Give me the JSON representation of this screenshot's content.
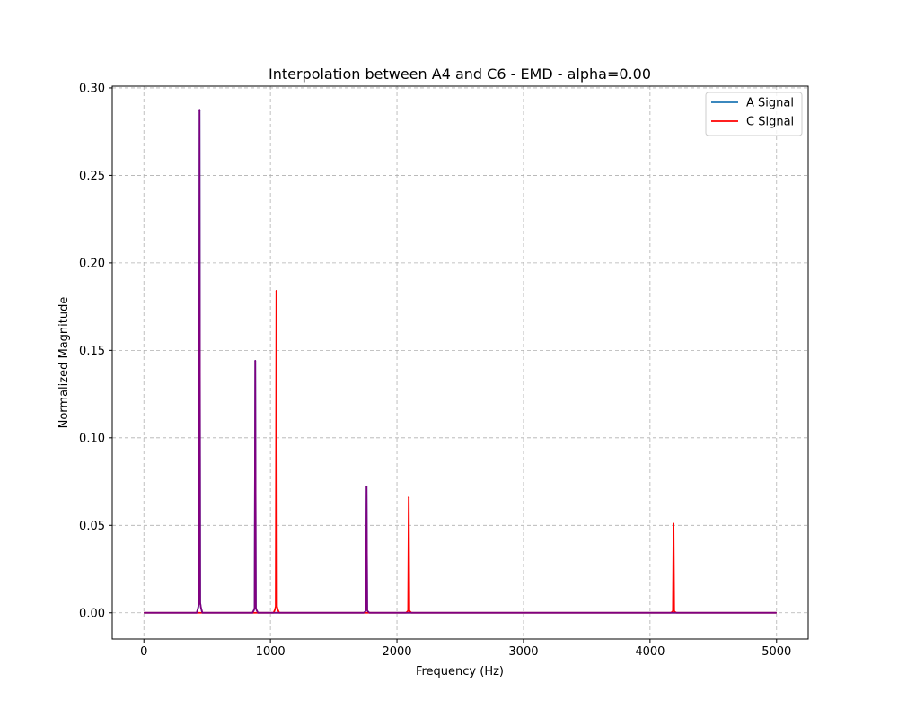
{
  "chart_data": {
    "type": "line",
    "title": "Interpolation between A4 and C6 - EMD - alpha=0.00",
    "xlabel": "Frequency (Hz)",
    "ylabel": "Normalized Magnitude",
    "xlim": [
      -250,
      5250
    ],
    "ylim": [
      -0.015,
      0.301
    ],
    "x_ticks": [
      0,
      1000,
      2000,
      3000,
      4000,
      5000
    ],
    "x_tick_labels": [
      "0",
      "1000",
      "2000",
      "3000",
      "4000",
      "5000"
    ],
    "y_ticks": [
      0.0,
      0.05,
      0.1,
      0.15,
      0.2,
      0.25,
      0.3
    ],
    "y_tick_labels": [
      "0.00",
      "0.05",
      "0.10",
      "0.15",
      "0.20",
      "0.25",
      "0.30"
    ],
    "grid": true,
    "grid_style": "dashed",
    "legend_position": "top-right",
    "legend": [
      {
        "label": "A Signal",
        "color": "#1f77b4"
      },
      {
        "label": "C Signal",
        "color": "#ff0000"
      }
    ],
    "series": [
      {
        "name": "A Signal",
        "color": "#1f77b4",
        "peaks": [
          {
            "x": 440,
            "y": 0.287
          },
          {
            "x": 880,
            "y": 0.144
          },
          {
            "x": 1760,
            "y": 0.072
          }
        ]
      },
      {
        "name": "C Signal",
        "color": "#ff0000",
        "peaks": [
          {
            "x": 1047,
            "y": 0.184
          },
          {
            "x": 2093,
            "y": 0.066
          },
          {
            "x": 4186,
            "y": 0.051
          }
        ]
      },
      {
        "color": "#800080",
        "peaks": [
          {
            "x": 440,
            "y": 0.287
          },
          {
            "x": 880,
            "y": 0.144
          },
          {
            "x": 1760,
            "y": 0.072
          }
        ]
      }
    ]
  }
}
